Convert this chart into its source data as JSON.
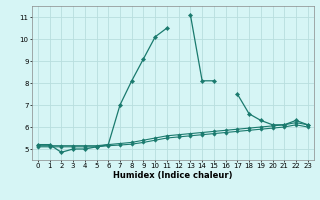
{
  "xlabel": "Humidex (Indice chaleur)",
  "background_color": "#d6f5f5",
  "grid_color": "#b8dede",
  "line_color": "#1a7a6e",
  "x_data": [
    0,
    1,
    2,
    3,
    4,
    5,
    6,
    7,
    8,
    9,
    10,
    11,
    12,
    13,
    14,
    15,
    16,
    17,
    18,
    19,
    20,
    21,
    22,
    23
  ],
  "line1": [
    5.2,
    5.2,
    4.85,
    5.0,
    5.0,
    5.1,
    5.2,
    7.0,
    8.1,
    9.1,
    10.1,
    10.5,
    null,
    11.1,
    8.1,
    8.1,
    null,
    7.5,
    6.6,
    6.3,
    6.1,
    6.1,
    6.3,
    6.1
  ],
  "line2": [
    5.15,
    5.15,
    5.15,
    5.15,
    5.15,
    5.15,
    5.2,
    5.25,
    5.3,
    5.4,
    5.5,
    5.6,
    5.65,
    5.7,
    5.75,
    5.8,
    5.85,
    5.9,
    5.95,
    6.0,
    6.05,
    6.1,
    6.2,
    6.1
  ],
  "line3": [
    5.1,
    5.1,
    5.1,
    5.1,
    5.1,
    5.1,
    5.15,
    5.18,
    5.22,
    5.3,
    5.4,
    5.5,
    5.55,
    5.6,
    5.65,
    5.7,
    5.75,
    5.8,
    5.85,
    5.9,
    5.95,
    6.0,
    6.1,
    6.0
  ],
  "ylim": [
    4.5,
    11.5
  ],
  "xlim": [
    -0.5,
    23.5
  ],
  "yticks": [
    5,
    6,
    7,
    8,
    9,
    10,
    11
  ],
  "xticks": [
    0,
    1,
    2,
    3,
    4,
    5,
    6,
    7,
    8,
    9,
    10,
    11,
    12,
    13,
    14,
    15,
    16,
    17,
    18,
    19,
    20,
    21,
    22,
    23
  ]
}
